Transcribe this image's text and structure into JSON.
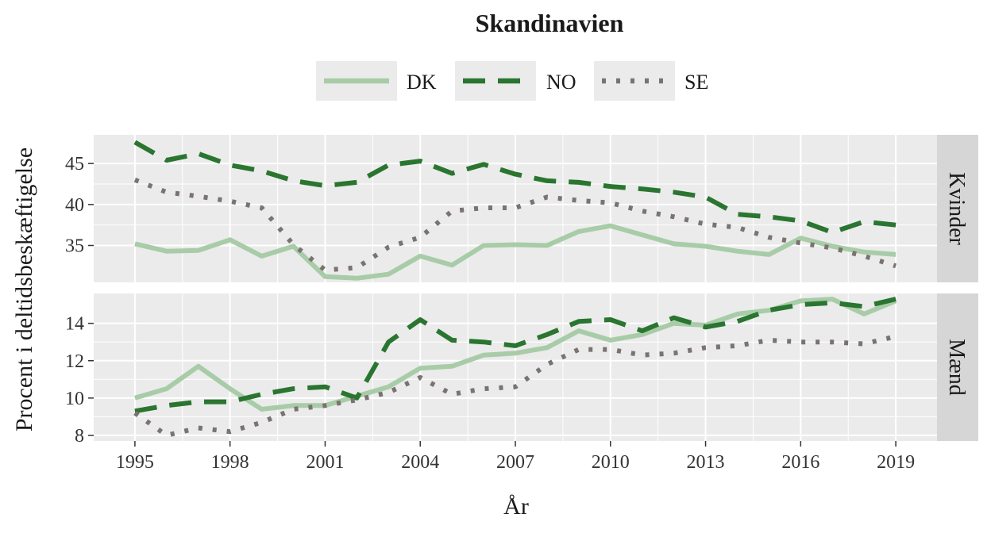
{
  "chart_data": {
    "type": "line",
    "title": "Skandinavien",
    "xlabel": "År",
    "ylabel": "Procent i deltidsbeskæftigelse",
    "x": [
      1995,
      1996,
      1997,
      1998,
      1999,
      2000,
      2001,
      2002,
      2003,
      2004,
      2005,
      2006,
      2007,
      2008,
      2009,
      2010,
      2011,
      2012,
      2013,
      2014,
      2015,
      2016,
      2017,
      2018,
      2019
    ],
    "x_ticks": [
      1995,
      1998,
      2001,
      2004,
      2007,
      2010,
      2013,
      2016,
      2019
    ],
    "xlim": [
      1993.7,
      2020.3
    ],
    "legend": {
      "position": "top"
    },
    "grid": true,
    "series_styles": [
      {
        "name": "DK",
        "color": "#a8cca8",
        "dash": "solid"
      },
      {
        "name": "NO",
        "color": "#2a7530",
        "dash": "dashed"
      },
      {
        "name": "SE",
        "color": "#7a7370",
        "dash": "dotted"
      }
    ],
    "panels": [
      {
        "strip": "Kvinder",
        "ylim": [
          30.5,
          48.5
        ],
        "y_ticks": [
          35,
          40,
          45
        ],
        "series": [
          {
            "name": "DK",
            "values": [
              35.2,
              34.3,
              34.4,
              35.7,
              33.7,
              34.9,
              31.2,
              31.0,
              31.5,
              33.7,
              32.6,
              35.0,
              35.1,
              35.0,
              36.7,
              37.4,
              36.3,
              35.2,
              34.9,
              34.3,
              33.9,
              35.9,
              34.9,
              34.2,
              33.9
            ]
          },
          {
            "name": "NO",
            "values": [
              47.6,
              45.4,
              46.2,
              44.8,
              44.1,
              42.9,
              42.3,
              42.7,
              44.8,
              45.3,
              43.8,
              44.9,
              43.7,
              42.9,
              42.7,
              42.2,
              41.9,
              41.5,
              40.9,
              38.8,
              38.5,
              38.0,
              36.6,
              37.9,
              37.5
            ]
          },
          {
            "name": "SE",
            "values": [
              43.0,
              41.5,
              41.0,
              40.4,
              39.6,
              35.1,
              32.0,
              32.3,
              34.8,
              36.0,
              39.2,
              39.6,
              39.6,
              40.9,
              40.5,
              40.2,
              39.2,
              38.5,
              37.6,
              37.2,
              36.0,
              35.3,
              34.7,
              33.7,
              32.5
            ]
          }
        ]
      },
      {
        "strip": "Mænd",
        "ylim": [
          7.7,
          15.6
        ],
        "y_ticks": [
          8,
          10,
          12,
          14
        ],
        "series": [
          {
            "name": "DK",
            "values": [
              10.0,
              10.5,
              11.7,
              10.5,
              9.4,
              9.6,
              9.6,
              10.1,
              10.6,
              11.6,
              11.7,
              12.3,
              12.4,
              12.7,
              13.6,
              13.1,
              13.4,
              14.0,
              13.9,
              14.5,
              14.7,
              15.2,
              15.3,
              14.5,
              15.2
            ]
          },
          {
            "name": "NO",
            "values": [
              9.3,
              9.6,
              9.8,
              9.8,
              10.2,
              10.5,
              10.6,
              10.0,
              13.0,
              14.2,
              13.1,
              13.0,
              12.8,
              13.4,
              14.1,
              14.2,
              13.6,
              14.3,
              13.8,
              14.1,
              14.7,
              15.0,
              15.1,
              14.9,
              15.3
            ]
          },
          {
            "name": "SE",
            "values": [
              9.2,
              8.0,
              8.4,
              8.2,
              8.7,
              9.4,
              9.6,
              9.9,
              10.3,
              11.1,
              10.2,
              10.5,
              10.6,
              11.8,
              12.6,
              12.6,
              12.3,
              12.4,
              12.7,
              12.8,
              13.1,
              13.0,
              13.0,
              12.9,
              13.3
            ]
          }
        ]
      }
    ]
  }
}
